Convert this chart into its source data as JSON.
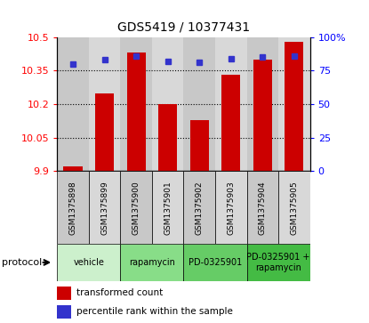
{
  "title": "GDS5419 / 10377431",
  "samples": [
    "GSM1375898",
    "GSM1375899",
    "GSM1375900",
    "GSM1375901",
    "GSM1375902",
    "GSM1375903",
    "GSM1375904",
    "GSM1375905"
  ],
  "transformed_counts": [
    9.92,
    10.25,
    10.43,
    10.2,
    10.13,
    10.33,
    10.4,
    10.48
  ],
  "percentile_ranks": [
    80,
    83,
    86,
    82,
    81,
    84,
    85,
    86
  ],
  "ylim_left": [
    9.9,
    10.5
  ],
  "yticks_left": [
    9.9,
    10.05,
    10.2,
    10.35,
    10.5
  ],
  "ytick_labels_left": [
    "9.9",
    "10.05",
    "10.2",
    "10.35",
    "10.5"
  ],
  "ylim_right": [
    0,
    100
  ],
  "yticks_right": [
    0,
    25,
    50,
    75,
    100
  ],
  "ytick_labels_right": [
    "0",
    "25",
    "50",
    "75",
    "100%"
  ],
  "bar_color": "#cc0000",
  "dot_color": "#3333cc",
  "bar_width": 0.6,
  "sample_box_color_even": "#c8c8c8",
  "sample_box_color_odd": "#d8d8d8",
  "protocols": [
    {
      "label": "vehicle",
      "samples": [
        0,
        1
      ],
      "color": "#ccf0cc"
    },
    {
      "label": "rapamycin",
      "samples": [
        2,
        3
      ],
      "color": "#88dd88"
    },
    {
      "label": "PD-0325901",
      "samples": [
        4,
        5
      ],
      "color": "#66cc66"
    },
    {
      "label": "PD-0325901 +\nrapamycin",
      "samples": [
        6,
        7
      ],
      "color": "#44bb44"
    }
  ],
  "legend_items": [
    {
      "label": "transformed count",
      "color": "#cc0000"
    },
    {
      "label": "percentile rank within the sample",
      "color": "#3333cc"
    }
  ]
}
